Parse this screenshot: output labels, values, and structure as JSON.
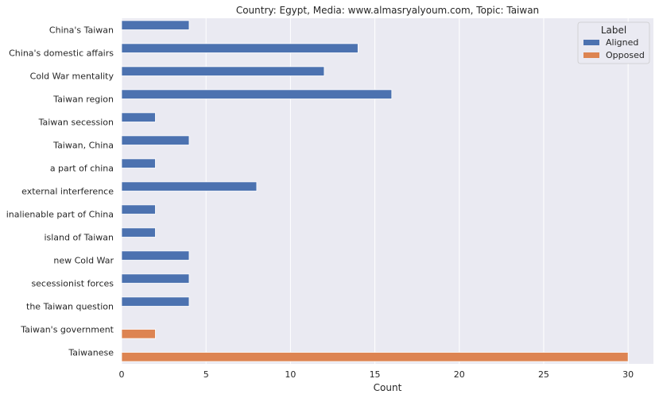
{
  "chart_data": {
    "type": "bar",
    "orientation": "horizontal",
    "title": "Country: Egypt, Media: www.almasryalyoum.com, Topic: Taiwan",
    "xlabel": "Count",
    "ylabel": "",
    "xlim": [
      0,
      31.5
    ],
    "xticks": [
      0,
      5,
      10,
      15,
      20,
      25,
      30
    ],
    "grid": true,
    "legend": {
      "title": "Label",
      "position": "top-right"
    },
    "categories": [
      "China's Taiwan",
      "China's domestic affairs",
      "Cold War mentality",
      "Taiwan region",
      "Taiwan secession",
      "Taiwan, China",
      "a part of china",
      "external interference",
      "inalienable part of China",
      "island of Taiwan",
      "new Cold War",
      "secessionist forces",
      "the Taiwan question",
      "Taiwan's government",
      "Taiwanese"
    ],
    "series": [
      {
        "name": "Aligned",
        "color": "#4c72b0",
        "values": [
          4,
          14,
          12,
          16,
          2,
          4,
          2,
          8,
          2,
          2,
          4,
          4,
          4,
          0,
          0
        ]
      },
      {
        "name": "Opposed",
        "color": "#dd8452",
        "values": [
          0,
          0,
          0,
          0,
          0,
          0,
          0,
          0,
          0,
          0,
          0,
          0,
          0,
          2,
          30
        ]
      }
    ]
  }
}
